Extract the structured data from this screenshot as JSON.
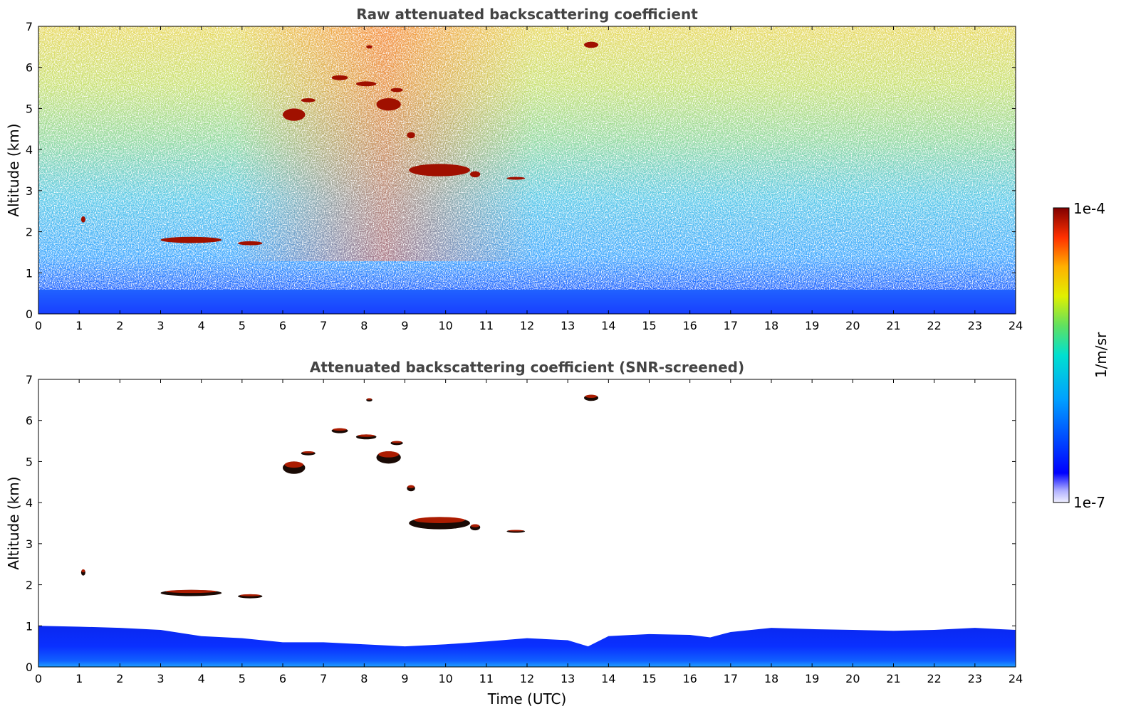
{
  "chart_data": [
    {
      "type": "heatmap",
      "title": "Raw attenuated backscattering coefficient",
      "xlabel": "",
      "ylabel": "Altitude (km)",
      "xlim": [
        0,
        24
      ],
      "ylim": [
        0,
        7
      ],
      "xticks": [
        "0",
        "1",
        "2",
        "3",
        "4",
        "5",
        "6",
        "7",
        "8",
        "9",
        "10",
        "11",
        "12",
        "13",
        "14",
        "15",
        "16",
        "17",
        "18",
        "19",
        "20",
        "21",
        "22",
        "23",
        "24"
      ],
      "yticks": [
        "0",
        "1",
        "2",
        "3",
        "4",
        "5",
        "6",
        "7"
      ],
      "noise": "high",
      "features": [
        {
          "kind": "cloud",
          "x_start": 1.05,
          "x_end": 1.15,
          "altitude": 2.3,
          "thickness": 0.15
        },
        {
          "kind": "cloud",
          "x_start": 3.0,
          "x_end": 4.5,
          "altitude": 1.8,
          "thickness": 0.15
        },
        {
          "kind": "cloud",
          "x_start": 4.9,
          "x_end": 5.5,
          "altitude": 1.72,
          "thickness": 0.1
        },
        {
          "kind": "cloud",
          "x_start": 6.0,
          "x_end": 6.55,
          "altitude": 4.85,
          "thickness": 0.3
        },
        {
          "kind": "cloud",
          "x_start": 6.45,
          "x_end": 6.8,
          "altitude": 5.2,
          "thickness": 0.1
        },
        {
          "kind": "cloud",
          "x_start": 7.2,
          "x_end": 7.6,
          "altitude": 5.75,
          "thickness": 0.12
        },
        {
          "kind": "cloud",
          "x_start": 7.8,
          "x_end": 8.3,
          "altitude": 5.6,
          "thickness": 0.12
        },
        {
          "kind": "cloud",
          "x_start": 8.05,
          "x_end": 8.2,
          "altitude": 6.5,
          "thickness": 0.08
        },
        {
          "kind": "cloud",
          "x_start": 8.3,
          "x_end": 8.9,
          "altitude": 5.1,
          "thickness": 0.3
        },
        {
          "kind": "cloud",
          "x_start": 8.65,
          "x_end": 8.95,
          "altitude": 5.45,
          "thickness": 0.1
        },
        {
          "kind": "cloud",
          "x_start": 9.05,
          "x_end": 9.25,
          "altitude": 4.35,
          "thickness": 0.15
        },
        {
          "kind": "cloud",
          "x_start": 9.1,
          "x_end": 10.6,
          "altitude": 3.5,
          "thickness": 0.3
        },
        {
          "kind": "cloud",
          "x_start": 10.6,
          "x_end": 10.85,
          "altitude": 3.4,
          "thickness": 0.15
        },
        {
          "kind": "cloud",
          "x_start": 11.5,
          "x_end": 11.95,
          "altitude": 3.3,
          "thickness": 0.06
        },
        {
          "kind": "cloud",
          "x_start": 13.4,
          "x_end": 13.75,
          "altitude": 6.55,
          "thickness": 0.15
        }
      ]
    },
    {
      "type": "heatmap",
      "title": "Attenuated backscattering coefficient (SNR-screened)",
      "xlabel": "Time (UTC)",
      "ylabel": "Altitude (km)",
      "xlim": [
        0,
        24
      ],
      "ylim": [
        0,
        7
      ],
      "xticks": [
        "0",
        "1",
        "2",
        "3",
        "4",
        "5",
        "6",
        "7",
        "8",
        "9",
        "10",
        "11",
        "12",
        "13",
        "14",
        "15",
        "16",
        "17",
        "18",
        "19",
        "20",
        "21",
        "22",
        "23",
        "24"
      ],
      "yticks": [
        "0",
        "1",
        "2",
        "3",
        "4",
        "5",
        "6",
        "7"
      ],
      "noise": "screened",
      "boundary_layer_top": [
        [
          0,
          1.0
        ],
        [
          1,
          0.98
        ],
        [
          2,
          0.95
        ],
        [
          3,
          0.9
        ],
        [
          4,
          0.75
        ],
        [
          5,
          0.7
        ],
        [
          6,
          0.6
        ],
        [
          7,
          0.6
        ],
        [
          8,
          0.55
        ],
        [
          9,
          0.5
        ],
        [
          10,
          0.55
        ],
        [
          11,
          0.62
        ],
        [
          12,
          0.7
        ],
        [
          13,
          0.65
        ],
        [
          13.5,
          0.5
        ],
        [
          14,
          0.75
        ],
        [
          15,
          0.8
        ],
        [
          16,
          0.78
        ],
        [
          16.5,
          0.72
        ],
        [
          17,
          0.85
        ],
        [
          18,
          0.95
        ],
        [
          19,
          0.92
        ],
        [
          20,
          0.9
        ],
        [
          21,
          0.88
        ],
        [
          22,
          0.9
        ],
        [
          23,
          0.95
        ],
        [
          24,
          0.9
        ]
      ],
      "features": [
        {
          "kind": "cloud",
          "x_start": 1.05,
          "x_end": 1.15,
          "altitude": 2.3,
          "thickness": 0.15
        },
        {
          "kind": "cloud",
          "x_start": 3.0,
          "x_end": 4.5,
          "altitude": 1.8,
          "thickness": 0.15
        },
        {
          "kind": "cloud",
          "x_start": 4.9,
          "x_end": 5.5,
          "altitude": 1.72,
          "thickness": 0.1
        },
        {
          "kind": "cloud",
          "x_start": 6.0,
          "x_end": 6.55,
          "altitude": 4.85,
          "thickness": 0.3
        },
        {
          "kind": "cloud",
          "x_start": 6.45,
          "x_end": 6.8,
          "altitude": 5.2,
          "thickness": 0.1
        },
        {
          "kind": "cloud",
          "x_start": 7.2,
          "x_end": 7.6,
          "altitude": 5.75,
          "thickness": 0.12
        },
        {
          "kind": "cloud",
          "x_start": 7.8,
          "x_end": 8.3,
          "altitude": 5.6,
          "thickness": 0.12
        },
        {
          "kind": "cloud",
          "x_start": 8.05,
          "x_end": 8.2,
          "altitude": 6.5,
          "thickness": 0.08
        },
        {
          "kind": "cloud",
          "x_start": 8.3,
          "x_end": 8.9,
          "altitude": 5.1,
          "thickness": 0.3
        },
        {
          "kind": "cloud",
          "x_start": 8.65,
          "x_end": 8.95,
          "altitude": 5.45,
          "thickness": 0.1
        },
        {
          "kind": "cloud",
          "x_start": 9.05,
          "x_end": 9.25,
          "altitude": 4.35,
          "thickness": 0.15
        },
        {
          "kind": "cloud",
          "x_start": 9.1,
          "x_end": 10.6,
          "altitude": 3.5,
          "thickness": 0.3
        },
        {
          "kind": "cloud",
          "x_start": 10.6,
          "x_end": 10.85,
          "altitude": 3.4,
          "thickness": 0.15
        },
        {
          "kind": "cloud",
          "x_start": 11.5,
          "x_end": 11.95,
          "altitude": 3.3,
          "thickness": 0.06
        },
        {
          "kind": "cloud",
          "x_start": 13.4,
          "x_end": 13.75,
          "altitude": 6.55,
          "thickness": 0.15
        }
      ]
    }
  ],
  "colorbar": {
    "label": "1/m/sr",
    "max_label": "1e-4",
    "min_label": "1e-7",
    "scale": "log",
    "colors": [
      "#e8e8ff",
      "#0000ff",
      "#00aaff",
      "#00ffcc",
      "#c8ff00",
      "#ffd700",
      "#ff4000",
      "#800000"
    ]
  }
}
